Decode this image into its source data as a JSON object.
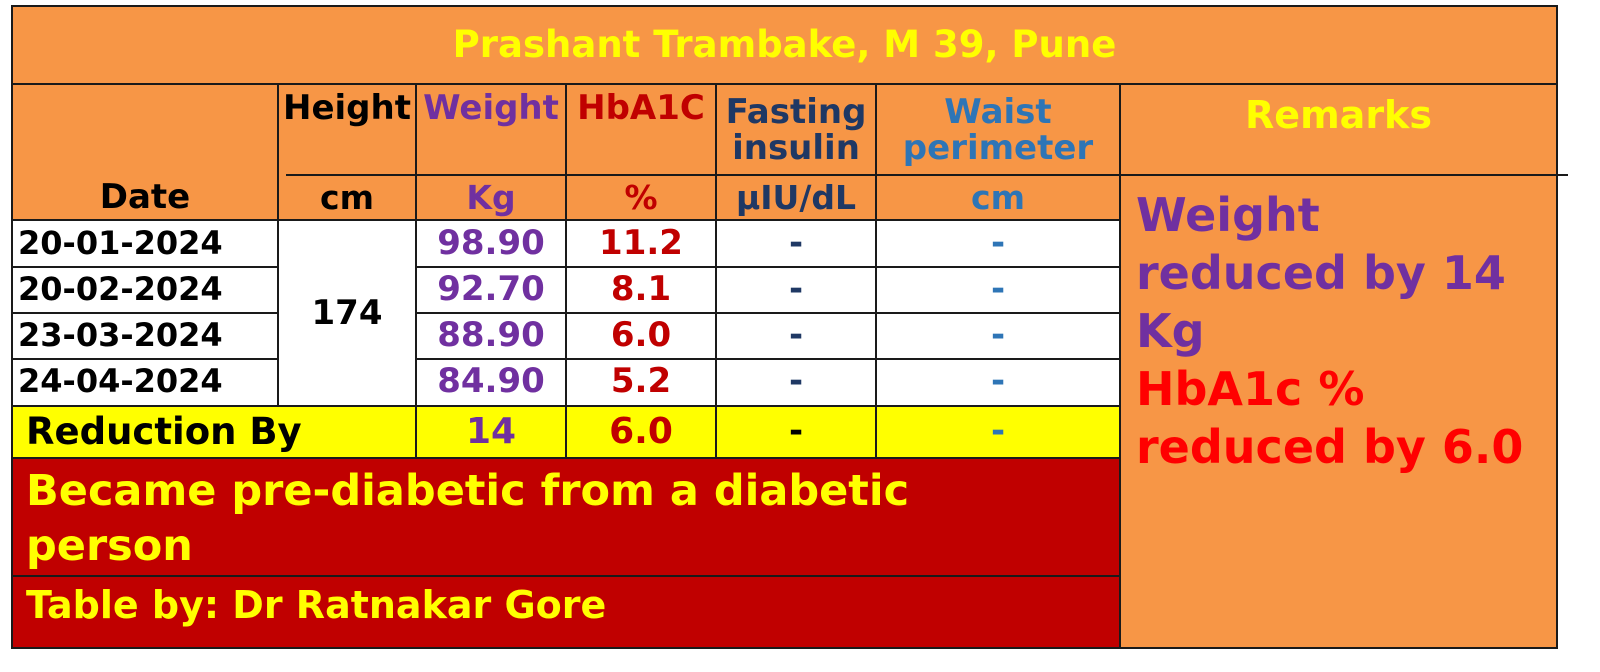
{
  "title": "Prashant Trambake, M 39, Pune",
  "headers": {
    "date": "Date",
    "height": "Height",
    "height_unit": "cm",
    "weight": "Weight",
    "weight_unit": "Kg",
    "hba1c": "HbA1C",
    "hba1c_unit": "%",
    "insulin_line1": "Fasting",
    "insulin_line2": "insulin",
    "insulin_unit": "µIU/dL",
    "waist_line1": "Waist",
    "waist_line2": "perimeter",
    "waist_unit": "cm",
    "remarks": "Remarks"
  },
  "height_value": "174",
  "rows": [
    {
      "date": "20-01-2024",
      "weight": "98.90",
      "hba1c": "11.2",
      "insulin": "-",
      "waist": "-"
    },
    {
      "date": "20-02-2024",
      "weight": "92.70",
      "hba1c": "8.1",
      "insulin": "-",
      "waist": "-"
    },
    {
      "date": "23-03-2024",
      "weight": "88.90",
      "hba1c": "6.0",
      "insulin": "-",
      "waist": "-"
    },
    {
      "date": "24-04-2024",
      "weight": "84.90",
      "hba1c": "5.2",
      "insulin": "-",
      "waist": "-"
    }
  ],
  "reduction": {
    "label": "Reduction By",
    "weight": "14",
    "hba1c": "6.0",
    "insulin": "-",
    "waist": "-"
  },
  "remarks_lines": {
    "weight_1": "Weight",
    "weight_2": "reduced by 14",
    "weight_3": "Kg",
    "hba1c_1": "HbA1c %",
    "hba1c_2": "reduced by 6.0"
  },
  "banner": {
    "line1": "Became pre-diabetic from a diabetic",
    "line2": "person"
  },
  "credit": "Table by: Dr Ratnakar Gore",
  "colors": {
    "orange": "#f79646",
    "yellow": "#ffff00",
    "dark_red": "#c00000",
    "purple": "#7030a0",
    "red": "#ff0000",
    "navy": "#1f3864",
    "blue": "#2e75b6"
  }
}
